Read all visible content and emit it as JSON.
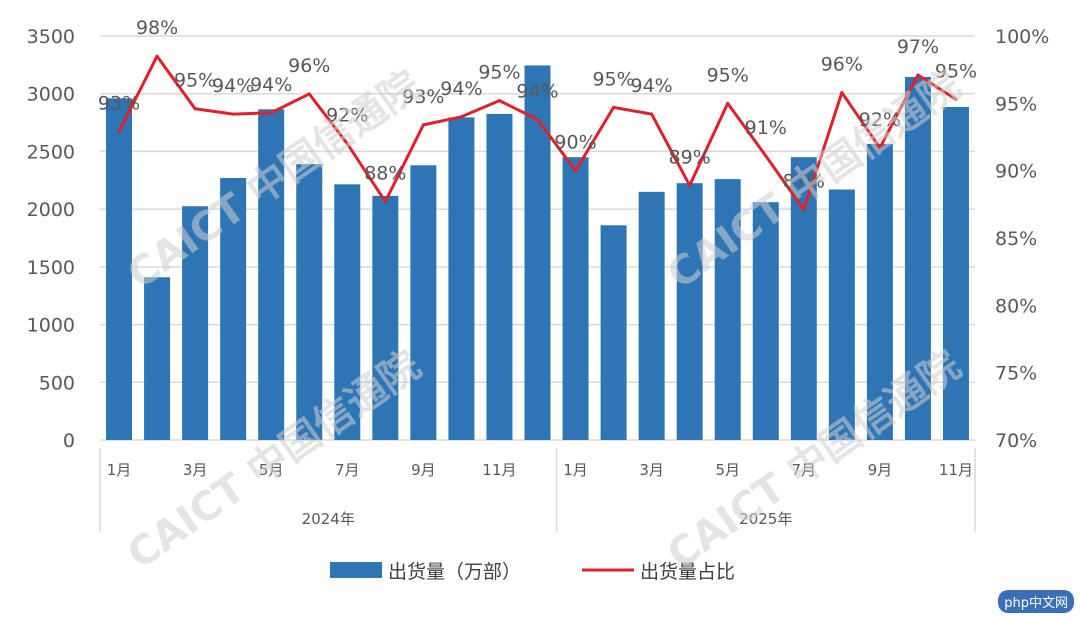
{
  "chart_data": {
    "type": "bar+line",
    "categories": [
      "2024-1月",
      "2024-2月",
      "2024-3月",
      "2024-4月",
      "2024-5月",
      "2024-6月",
      "2024-7月",
      "2024-8月",
      "2024-9月",
      "2024-10月",
      "2024-11月",
      "2024-12月",
      "2025-1月",
      "2025-2月",
      "2025-3月",
      "2025-4月",
      "2025-5月",
      "2025-6月",
      "2025-7月",
      "2025-8月",
      "2025-9月",
      "2025-10月",
      "2025-11月"
    ],
    "x_tick_labels": [
      "1月",
      "",
      "3月",
      "",
      "5月",
      "",
      "7月",
      "",
      "9月",
      "",
      "11月",
      "",
      "1月",
      "",
      "3月",
      "",
      "5月",
      "",
      "7月",
      "",
      "9月",
      "",
      "11月"
    ],
    "groups": [
      {
        "label": "2024年",
        "count": 12
      },
      {
        "label": "2025年",
        "count": 11
      }
    ],
    "series": [
      {
        "name": "出货量（万部）",
        "type": "bar",
        "axis": "left",
        "color": "#2E75B6",
        "values": [
          2960,
          1410,
          2025,
          2270,
          2865,
          2390,
          2215,
          2115,
          2380,
          2795,
          2825,
          3245,
          2450,
          1860,
          2150,
          2225,
          2260,
          2060,
          2450,
          2170,
          2565,
          3145,
          2885
        ]
      },
      {
        "name": "出货量占比",
        "type": "line",
        "axis": "right",
        "color": "#E0202B",
        "values": [
          92.9,
          98.5,
          94.6,
          94.2,
          94.3,
          95.7,
          92.0,
          87.7,
          93.4,
          94.0,
          95.2,
          93.8,
          90.0,
          94.7,
          94.2,
          88.9,
          95.0,
          91.1,
          87.1,
          95.8,
          91.7,
          97.1,
          95.3
        ],
        "labels": [
          "93%",
          "98%",
          "95%",
          "94%",
          "94%",
          "96%",
          "92%",
          "88%",
          "93%",
          "94%",
          "95%",
          "94%",
          "90%",
          "95%",
          "94%",
          "89%",
          "95%",
          "91%",
          "87%",
          "96%",
          "92%",
          "97%",
          "95%"
        ]
      }
    ],
    "y_left": {
      "lim": [
        0,
        3500
      ],
      "ticks": [
        "0",
        "500",
        "1000",
        "1500",
        "2000",
        "2500",
        "3000",
        "3500"
      ]
    },
    "y_right": {
      "lim": [
        70,
        100
      ],
      "ticks": [
        "70%",
        "75%",
        "80%",
        "85%",
        "90%",
        "95%",
        "100%"
      ]
    },
    "grid": true,
    "legend_position": "bottom"
  },
  "watermark": "CAICT 中国信通院",
  "site_logo": "php中文网"
}
